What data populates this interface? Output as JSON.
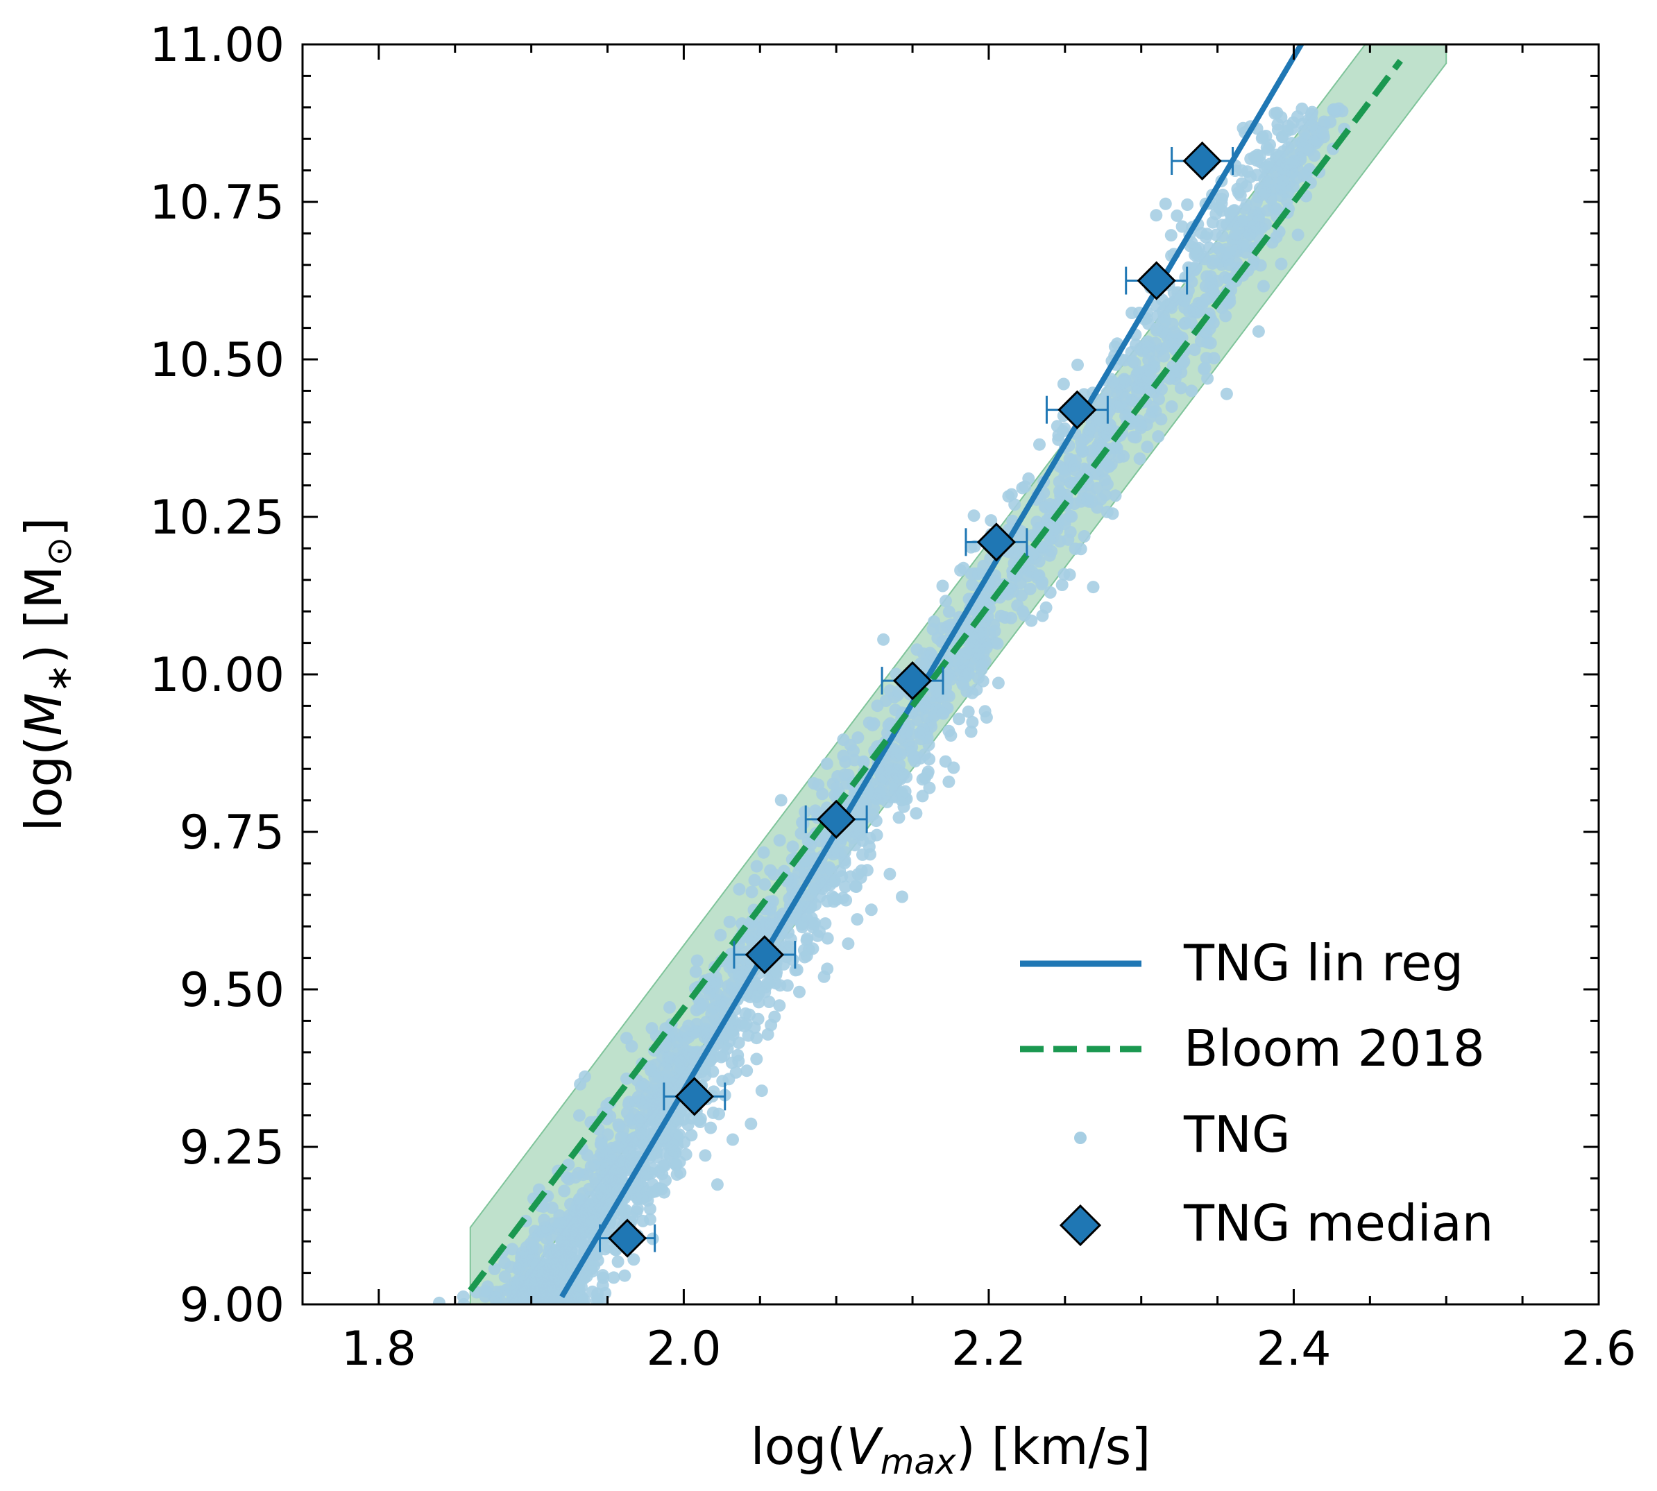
{
  "chart_data": {
    "type": "scatter",
    "xlabel_prefix": "log(",
    "xlabel_var": "V",
    "xlabel_sub": "max",
    "xlabel_suffix": ") [km/s]",
    "ylabel_prefix": "log(",
    "ylabel_var": "M",
    "ylabel_sub": "∗",
    "ylabel_suffix": ") [M",
    "ylabel_sun_sub": "⊙",
    "ylabel_close": "]",
    "xlim": [
      1.75,
      2.6
    ],
    "ylim": [
      9.0,
      11.0
    ],
    "x_ticks": [
      "1.8",
      "2.0",
      "2.2",
      "2.4",
      "2.6"
    ],
    "y_ticks": [
      "9.00",
      "9.25",
      "9.50",
      "9.75",
      "10.00",
      "10.25",
      "10.50",
      "10.75",
      "11.00"
    ],
    "legend_position": "lower right",
    "legend": [
      {
        "label": "TNG lin reg",
        "style": "solid-line",
        "color": "#1f77b4"
      },
      {
        "label": "Bloom 2018",
        "style": "dashed-line",
        "color": "#1a9850"
      },
      {
        "label": "TNG",
        "style": "dot",
        "color": "#a6cee3"
      },
      {
        "label": "TNG median",
        "style": "diamond",
        "color": "#1f77b4"
      }
    ],
    "lin_reg": {
      "label": "TNG lin reg",
      "slope": 4.1,
      "intercept": 1.14,
      "x_range": [
        1.92,
        2.405
      ],
      "color": "#1f77b4"
    },
    "bloom_2018": {
      "label": "Bloom 2018",
      "slope": 3.2,
      "intercept": 3.07,
      "band_halfwidth": 0.1,
      "x_range": [
        1.86,
        2.47
      ],
      "x_band": [
        1.86,
        2.5
      ],
      "color": "#1a9850",
      "band_color": "#7fc49a"
    },
    "scatter": {
      "label": "TNG",
      "color": "#a6cee3",
      "center_slope": 3.7,
      "center_intercept": 1.96,
      "y_range": [
        9.0,
        10.9
      ],
      "note_points": "dense cloud"
    },
    "medians": {
      "label": "TNG median",
      "color": "#1f77b4",
      "points": [
        {
          "x": 1.963,
          "y": 9.105,
          "xerr": 0.018
        },
        {
          "x": 2.007,
          "y": 9.33,
          "xerr": 0.02
        },
        {
          "x": 2.053,
          "y": 9.555,
          "xerr": 0.02
        },
        {
          "x": 2.1,
          "y": 9.77,
          "xerr": 0.02
        },
        {
          "x": 2.15,
          "y": 9.99,
          "xerr": 0.02
        },
        {
          "x": 2.205,
          "y": 10.21,
          "xerr": 0.02
        },
        {
          "x": 2.258,
          "y": 10.42,
          "xerr": 0.02
        },
        {
          "x": 2.31,
          "y": 10.625,
          "xerr": 0.02
        },
        {
          "x": 2.34,
          "y": 10.815,
          "xerr": 0.02
        }
      ]
    }
  }
}
